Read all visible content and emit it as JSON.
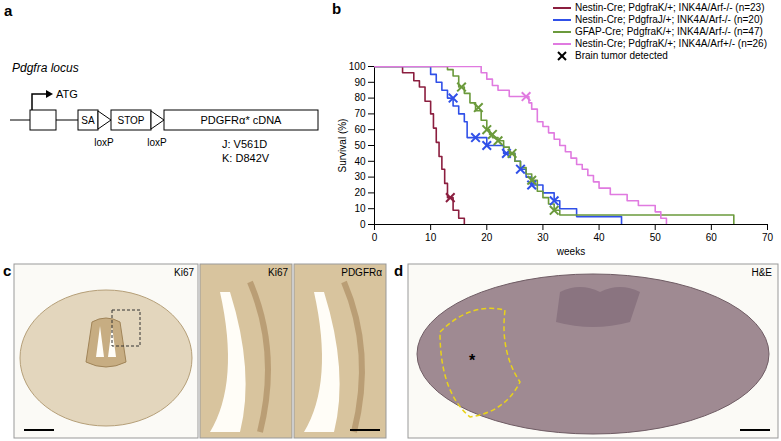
{
  "panel_a": {
    "label": "a",
    "locus_title": "Pdgfra locus",
    "start_codon": "ATG",
    "elements": [
      "SA",
      "STOP",
      "PDGFRα* cDNA"
    ],
    "lox_sites": [
      "loxP",
      "loxP"
    ],
    "mutations": [
      "J: V561D",
      "K: D842V"
    ]
  },
  "chart_data": {
    "panel_label": "b",
    "type": "line",
    "line_style": "step",
    "marker": "x",
    "x_label": "weeks",
    "y_label": "Survival (%)",
    "xlim": [
      0,
      70
    ],
    "xticks": [
      0,
      10,
      20,
      30,
      40,
      50,
      60,
      70
    ],
    "ylim": [
      0,
      100
    ],
    "yticks": [
      0,
      10,
      20,
      30,
      40,
      50,
      60,
      70,
      80,
      90,
      100
    ],
    "legend": "top-right",
    "marker_legend": "Brain tumor detected",
    "series": [
      {
        "name": "Nestin-Cre; PdgfraK/+; INK4A/Arf-/- (n=23)",
        "color": "#8b1e3f",
        "x": [
          0,
          5,
          7,
          8,
          9,
          10,
          10.5,
          11,
          11.5,
          12,
          12.5,
          13,
          14,
          15,
          16
        ],
        "values": [
          100,
          96,
          91,
          87,
          78,
          70,
          61,
          52,
          43,
          35,
          26,
          17,
          9,
          4,
          0
        ],
        "markers": {
          "x": [
            13.5
          ],
          "values": [
            17
          ]
        }
      },
      {
        "name": "Nestin-Cre; PdgfraJ/+; INK4A/Arf-/- (n=20)",
        "color": "#3050e8",
        "x": [
          0,
          10,
          11,
          12,
          13,
          14,
          15,
          16,
          16.5,
          20,
          23,
          25,
          26,
          27,
          28,
          30,
          32,
          33,
          36,
          44
        ],
        "values": [
          100,
          95,
          90,
          85,
          80,
          75,
          70,
          65,
          55,
          50,
          45,
          40,
          35,
          30,
          25,
          20,
          15,
          10,
          5,
          0
        ],
        "markers": {
          "x": [
            14,
            18,
            20,
            23.5,
            26,
            28,
            32
          ],
          "values": [
            80,
            55,
            50,
            45,
            35,
            25,
            15
          ]
        }
      },
      {
        "name": "GFAP-Cre; PdgfraK/+; INK4A/Arf-/- (n=47)",
        "color": "#6b9a3c",
        "x": [
          0,
          13,
          14,
          15,
          16,
          17,
          18,
          19,
          20,
          20.5,
          21,
          22,
          23,
          24,
          25,
          26,
          27,
          28,
          29,
          30,
          31,
          32,
          33,
          64
        ],
        "values": [
          100,
          98,
          94,
          87,
          83,
          77,
          72,
          66,
          60,
          57,
          55,
          53,
          49,
          45,
          40,
          36,
          32,
          28,
          21,
          17,
          13,
          9,
          6,
          0
        ],
        "markers": {
          "x": [
            15.5,
            18.5,
            20,
            21,
            22,
            24.5,
            28,
            32
          ],
          "values": [
            87,
            74,
            60,
            57,
            53,
            45,
            28,
            9
          ]
        }
      },
      {
        "name": "Nestin-Cre; PdgfraK/+; INK4A/Arf+/- (n=26)",
        "color": "#e07ae0",
        "x": [
          0,
          19,
          20,
          21,
          22,
          24,
          27.5,
          28,
          29,
          30,
          31,
          32,
          33,
          34,
          35,
          36,
          37,
          38,
          39,
          40,
          42,
          45,
          47,
          50,
          51,
          52
        ],
        "values": [
          100,
          96,
          92,
          88,
          85,
          81,
          77,
          73,
          65,
          62,
          58,
          54,
          50,
          46,
          42,
          38,
          35,
          31,
          27,
          23,
          19,
          15,
          12,
          8,
          4,
          0
        ],
        "markers": {
          "x": [
            27
          ],
          "values": [
            81
          ]
        }
      }
    ]
  },
  "panel_c": {
    "label": "c",
    "images": [
      "Ki67",
      "Ki67",
      "PDGFRα"
    ]
  },
  "panel_d": {
    "label": "d",
    "images": [
      "H&E"
    ],
    "tumor_mark": "*"
  }
}
